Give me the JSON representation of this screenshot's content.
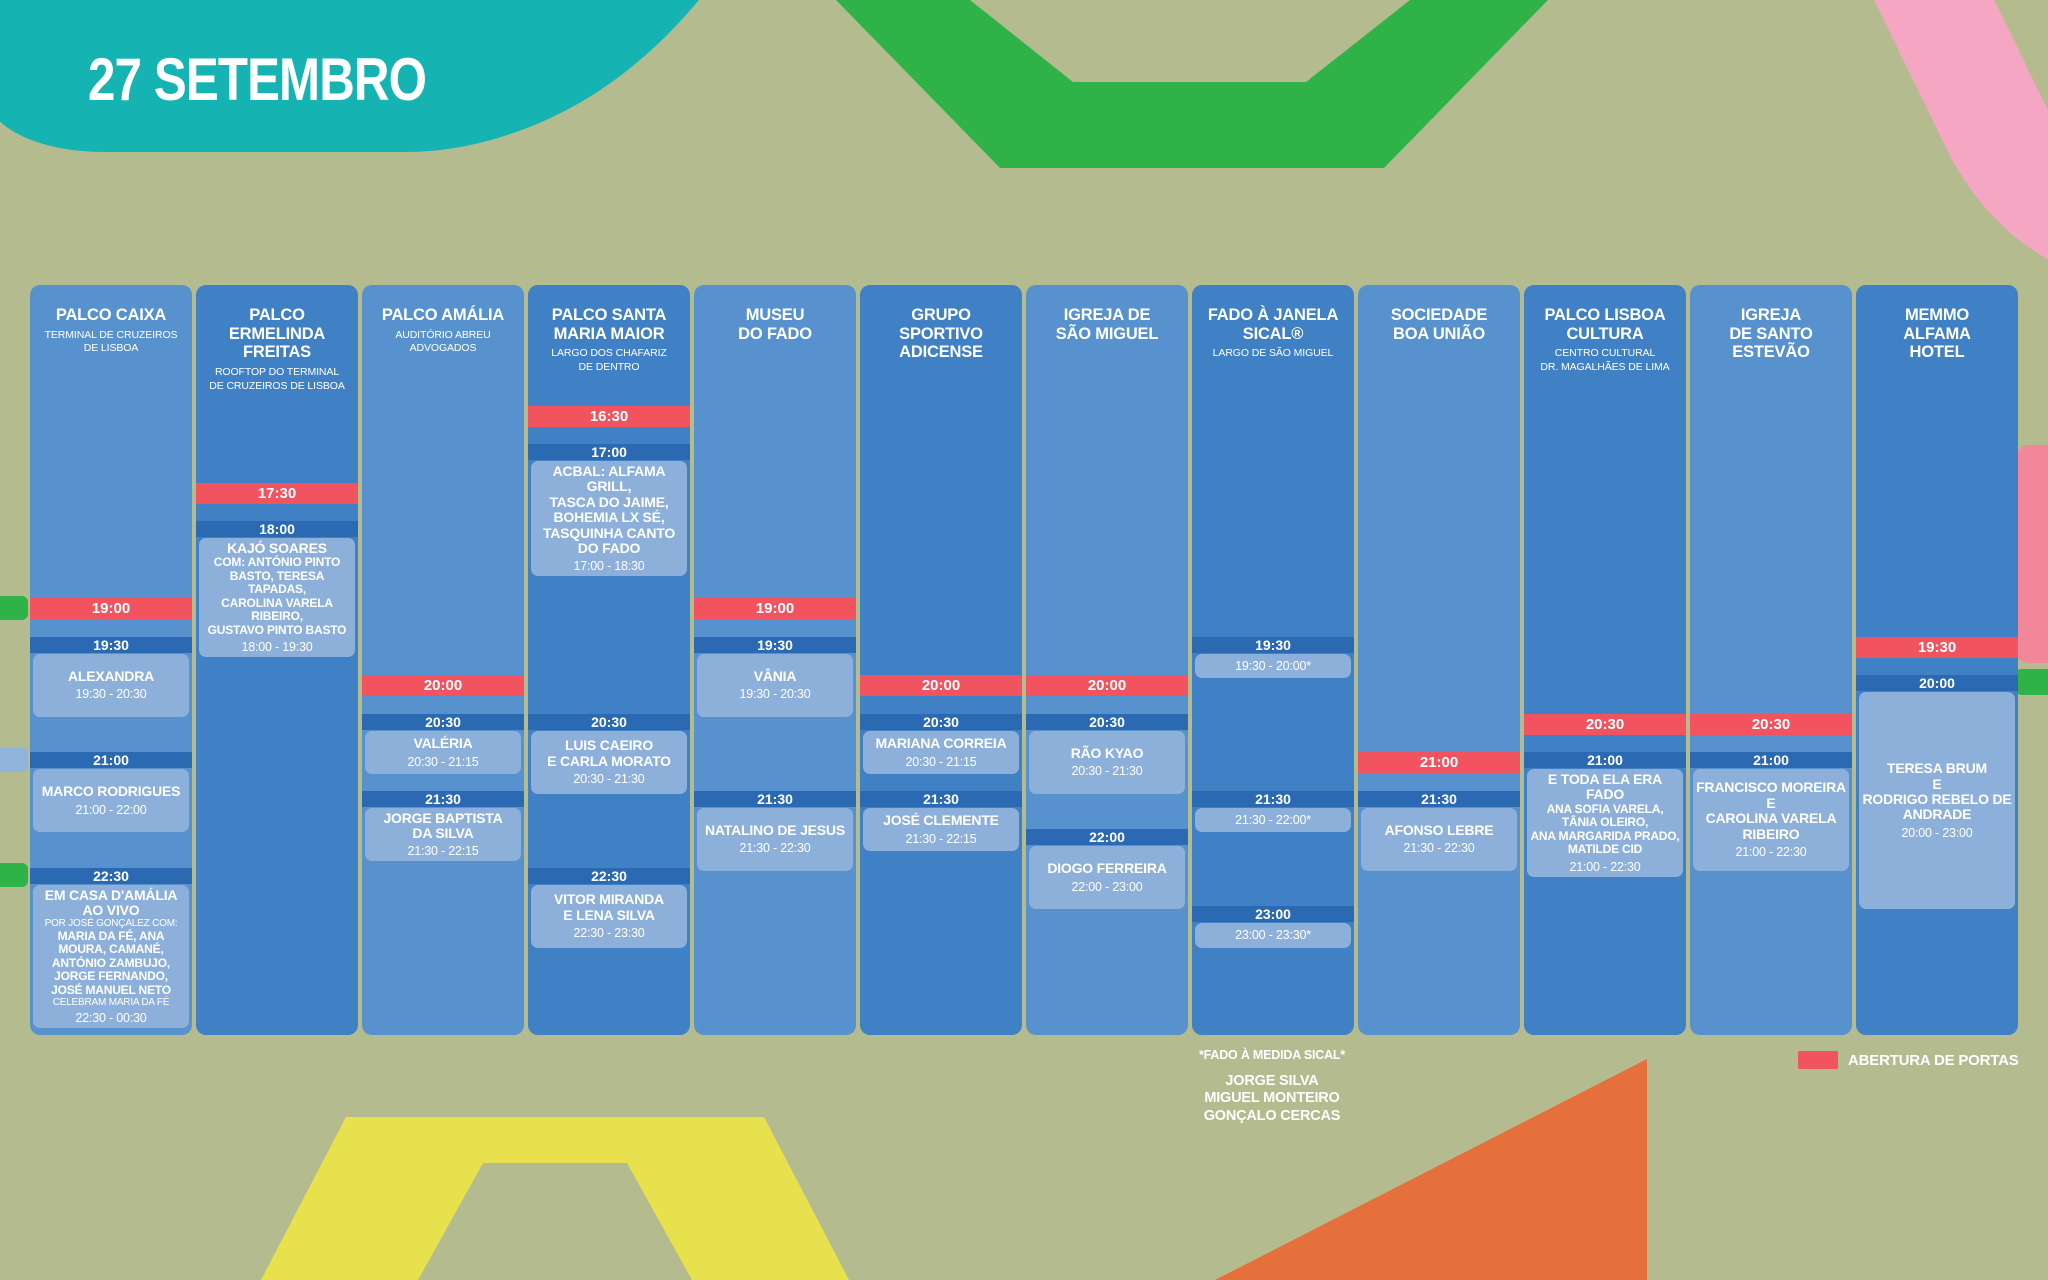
{
  "header": {
    "date_title": "27 SETEMBRO"
  },
  "legend": {
    "label": "ABERTURA DE PORTAS",
    "swatch_color": "#f2545f"
  },
  "footnote": {
    "title": "*FADO À MEDIDA SICAL*",
    "names": [
      "JORGE SILVA",
      "MIGUEL MONTEIRO",
      "GONÇALO CERCAS"
    ]
  },
  "colors": {
    "background": "#b4bc8f",
    "teal_header": "#16b3b3",
    "green_shape": "#2fb348",
    "yellow_shape": "#e7e14d",
    "orange_shape": "#e5703c",
    "pink_shape": "#f4a6c2",
    "pink_edge_tab": "#f2879b",
    "column_light": "#5892ce",
    "column_dark": "#4080c4",
    "time_bar": "#2b6ab3",
    "event_block": "#8db0da",
    "doors_red": "#f2545f"
  },
  "schedule": {
    "columns": [
      {
        "name": "PALCO CAIXA",
        "title": "PALCO CAIXA",
        "subtitle": "TERMINAL DE CRUZEIROS\nDE LISBOA",
        "shade": "light",
        "blocks": [
          {
            "type": "doors",
            "time": "19:00"
          },
          {
            "type": "event",
            "start": "19:30",
            "end": "20:30",
            "lines": [
              {
                "style": "name",
                "text": "ALEXANDRA"
              },
              {
                "style": "range",
                "text": "19:30 - 20:30"
              }
            ]
          },
          {
            "type": "event",
            "start": "21:00",
            "end": "22:00",
            "lines": [
              {
                "style": "name",
                "text": "MARCO RODRIGUES"
              },
              {
                "style": "range",
                "text": "21:00 - 22:00"
              }
            ]
          },
          {
            "type": "event",
            "start": "22:30",
            "end": "00:30",
            "lines": [
              {
                "style": "name",
                "text": "EM CASA D'AMÁLIA\nAO VIVO"
              },
              {
                "style": "small",
                "text": "POR JOSÉ GONÇALEZ COM:"
              },
              {
                "style": "names",
                "text": "MARIA DA FÉ, ANA\nMOURA, CAMANÉ,\nANTÓNIO ZAMBUJO,\nJORGE FERNANDO,\nJOSÉ MANUEL NETO"
              },
              {
                "style": "small",
                "text": "CELEBRAM MARIA DA FÉ"
              },
              {
                "style": "range",
                "text": "22:30 - 00:30"
              }
            ]
          }
        ]
      },
      {
        "name": "PALCO ERMELINDA FREITAS",
        "title": "PALCO ERMELINDA\nFREITAS",
        "subtitle": "ROOFTOP DO TERMINAL\nDE CRUZEIROS DE LISBOA",
        "shade": "dark",
        "blocks": [
          {
            "type": "doors",
            "time": "17:30"
          },
          {
            "type": "event",
            "start": "18:00",
            "end": "19:30",
            "lines": [
              {
                "style": "name",
                "text": "KAJÓ SOARES"
              },
              {
                "style": "names",
                "text": "COM: ANTÓNIO PINTO\nBASTO, TERESA TAPADAS,\nCAROLINA VARELA RIBEIRO,\nGUSTAVO PINTO BASTO"
              },
              {
                "style": "range",
                "text": "18:00 - 19:30"
              }
            ]
          }
        ]
      },
      {
        "name": "PALCO AMÁLIA",
        "title": "PALCO AMÁLIA",
        "subtitle": "AUDITÓRIO ABREU\nADVOGADOS",
        "shade": "light",
        "blocks": [
          {
            "type": "doors",
            "time": "20:00"
          },
          {
            "type": "event",
            "start": "20:30",
            "end": "21:15",
            "lines": [
              {
                "style": "name",
                "text": "VALÉRIA"
              },
              {
                "style": "range",
                "text": "20:30 - 21:15"
              }
            ]
          },
          {
            "type": "event",
            "start": "21:30",
            "end": "22:15",
            "lines": [
              {
                "style": "name",
                "text": "JORGE BAPTISTA\nDA SILVA"
              },
              {
                "style": "range",
                "text": "21:30 - 22:15"
              }
            ]
          }
        ]
      },
      {
        "name": "PALCO SANTA MARIA MAIOR",
        "title": "PALCO SANTA\nMARIA MAIOR",
        "subtitle": "LARGO DOS CHAFARIZ\nDE DENTRO",
        "shade": "dark",
        "blocks": [
          {
            "type": "doors",
            "time": "16:30"
          },
          {
            "type": "event",
            "start": "17:00",
            "end": "18:30",
            "lines": [
              {
                "style": "name",
                "text": "ACBAL: ALFAMA GRILL,\nTASCA DO JAIME,\nBOHEMIA LX SÉ,\nTASQUINHA CANTO\nDO FADO"
              },
              {
                "style": "range",
                "text": "17:00 - 18:30"
              }
            ]
          },
          {
            "type": "event",
            "start": "20:30",
            "end": "21:30",
            "lines": [
              {
                "style": "name",
                "text": "LUIS CAEIRO\nE CARLA MORATO"
              },
              {
                "style": "range",
                "text": "20:30 - 21:30"
              }
            ]
          },
          {
            "type": "event",
            "start": "22:30",
            "end": "23:30",
            "lines": [
              {
                "style": "name",
                "text": "VITOR MIRANDA\nE LENA SILVA"
              },
              {
                "style": "range",
                "text": "22:30 - 23:30"
              }
            ]
          }
        ]
      },
      {
        "name": "MUSEU DO FADO",
        "title": "MUSEU\nDO FADO",
        "subtitle": "",
        "shade": "light",
        "blocks": [
          {
            "type": "doors",
            "time": "19:00"
          },
          {
            "type": "event",
            "start": "19:30",
            "end": "20:30",
            "lines": [
              {
                "style": "name",
                "text": "VÂNIA"
              },
              {
                "style": "range",
                "text": "19:30 - 20:30"
              }
            ]
          },
          {
            "type": "event",
            "start": "21:30",
            "end": "22:30",
            "lines": [
              {
                "style": "name",
                "text": "NATALINO DE JESUS"
              },
              {
                "style": "range",
                "text": "21:30 - 22:30"
              }
            ]
          }
        ]
      },
      {
        "name": "GRUPO SPORTIVO ADICENSE",
        "title": "GRUPO\nSPORTIVO\nADICENSE",
        "subtitle": "",
        "shade": "dark",
        "blocks": [
          {
            "type": "doors",
            "time": "20:00"
          },
          {
            "type": "event",
            "start": "20:30",
            "end": "21:15",
            "lines": [
              {
                "style": "name",
                "text": "MARIANA CORREIA"
              },
              {
                "style": "range",
                "text": "20:30 - 21:15"
              }
            ]
          },
          {
            "type": "event",
            "start": "21:30",
            "end": "22:15",
            "lines": [
              {
                "style": "name",
                "text": "JOSÉ CLEMENTE"
              },
              {
                "style": "range",
                "text": "21:30 - 22:15"
              }
            ]
          }
        ]
      },
      {
        "name": "IGREJA DE SÃO MIGUEL",
        "title": "IGREJA DE\nSÃO MIGUEL",
        "subtitle": "",
        "shade": "light",
        "blocks": [
          {
            "type": "doors",
            "time": "20:00"
          },
          {
            "type": "event",
            "start": "20:30",
            "end": "21:30",
            "lines": [
              {
                "style": "name",
                "text": "RÃO KYAO"
              },
              {
                "style": "range",
                "text": "20:30 - 21:30"
              }
            ]
          },
          {
            "type": "event",
            "start": "22:00",
            "end": "23:00",
            "lines": [
              {
                "style": "name",
                "text": "DIOGO FERREIRA"
              },
              {
                "style": "range",
                "text": "22:00 - 23:00"
              }
            ]
          }
        ]
      },
      {
        "name": "FADO À JANELA SICAL®",
        "title": "FADO À JANELA\nSICAL®",
        "subtitle": "LARGO DE SÃO MIGUEL",
        "shade": "dark",
        "blocks": [
          {
            "type": "event",
            "start": "19:30",
            "end": "20:00",
            "lines": [
              {
                "style": "range",
                "text": "19:30 - 20:00*"
              }
            ]
          },
          {
            "type": "event",
            "start": "21:30",
            "end": "22:00",
            "lines": [
              {
                "style": "range",
                "text": "21:30 - 22:00*"
              }
            ]
          },
          {
            "type": "event",
            "start": "23:00",
            "end": "23:30",
            "lines": [
              {
                "style": "range",
                "text": "23:00 - 23:30*"
              }
            ]
          }
        ]
      },
      {
        "name": "SOCIEDADE BOA UNIÃO",
        "title": "SOCIEDADE\nBOA UNIÃO",
        "subtitle": "",
        "shade": "light",
        "blocks": [
          {
            "type": "doors",
            "time": "21:00"
          },
          {
            "type": "event",
            "start": "21:30",
            "end": "22:30",
            "lines": [
              {
                "style": "name",
                "text": "AFONSO LEBRE"
              },
              {
                "style": "range",
                "text": "21:30 - 22:30"
              }
            ]
          }
        ]
      },
      {
        "name": "PALCO LISBOA CULTURA",
        "title": "PALCO LISBOA\nCULTURA",
        "subtitle": "CENTRO CULTURAL\nDR. MAGALHÃES DE LIMA",
        "shade": "dark",
        "blocks": [
          {
            "type": "doors",
            "time": "20:30"
          },
          {
            "type": "event",
            "start": "21:00",
            "end": "22:30",
            "lines": [
              {
                "style": "name",
                "text": "E TODA ELA ERA FADO"
              },
              {
                "style": "names",
                "text": "ANA SOFIA VARELA,\nTÂNIA OLEIRO,\nANA MARGARIDA PRADO,\nMATILDE CID"
              },
              {
                "style": "range",
                "text": "21:00 - 22:30"
              }
            ]
          }
        ]
      },
      {
        "name": "IGREJA DE SANTO ESTEVÃO",
        "title": "IGREJA\nDE SANTO\nESTEVÃO",
        "subtitle": "",
        "shade": "light",
        "blocks": [
          {
            "type": "doors",
            "time": "20:30"
          },
          {
            "type": "event",
            "start": "21:00",
            "end": "22:30",
            "lines": [
              {
                "style": "name",
                "text": "FRANCISCO MOREIRA\nE\nCAROLINA VARELA\nRIBEIRO"
              },
              {
                "style": "range",
                "text": "21:00 - 22:30"
              }
            ]
          }
        ]
      },
      {
        "name": "MEMMO ALFAMA HOTEL",
        "title": "MEMMO\nALFAMA\nHOTEL",
        "subtitle": "",
        "shade": "dark",
        "blocks": [
          {
            "type": "doors",
            "time": "19:30"
          },
          {
            "type": "event",
            "start": "20:00",
            "end": "23:00",
            "center": true,
            "lines": [
              {
                "style": "name",
                "text": "TERESA BRUM\nE\nRODRIGO REBELO DE\nANDRADE"
              },
              {
                "style": "range",
                "text": "20:00 - 23:00"
              }
            ]
          }
        ]
      }
    ]
  }
}
